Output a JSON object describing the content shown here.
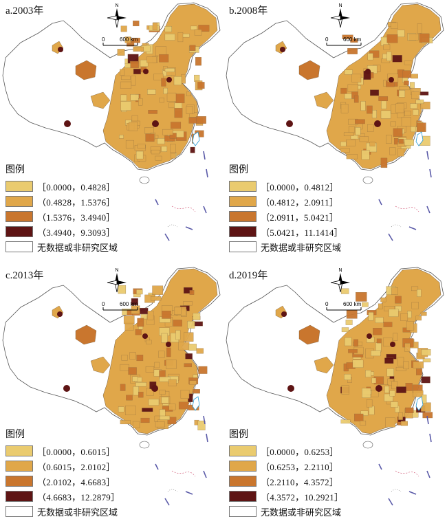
{
  "colors": {
    "class1": "#EACB6F",
    "class2": "#E0A74A",
    "class3": "#C9762E",
    "class4": "#5E1414",
    "nodata": "#FFFFFF",
    "boundary": "#555555"
  },
  "compass": {
    "north_label": "N"
  },
  "scale": {
    "zero": "0",
    "distance": "600 km"
  },
  "legend_title": "图例",
  "nodata_label": "无数据或非研究区域",
  "panels": [
    {
      "title": "a.2003年",
      "classes": [
        "［0.0000，0.4828］",
        "（0.4828，1.5376］",
        "（1.5376，3.4940］",
        "（3.4940，9.3093］"
      ]
    },
    {
      "title": "b.2008年",
      "classes": [
        "［0.0000，0.4812］",
        "（0.4812，2.0911］",
        "（2.0911，5.0421］",
        "（5.0421，11.1414］"
      ]
    },
    {
      "title": "c.2013年",
      "classes": [
        "［0.0000，0.6015］",
        "（0.6015，2.0102］",
        "（2.0102，4.6683］",
        "（4.6683，12.2879］"
      ]
    },
    {
      "title": "d.2019年",
      "classes": [
        "［0.0000，0.6253］",
        "（0.6253，2.2110］",
        "（2.2110，4.3572］",
        "（4.3572，10.2921］"
      ]
    }
  ]
}
